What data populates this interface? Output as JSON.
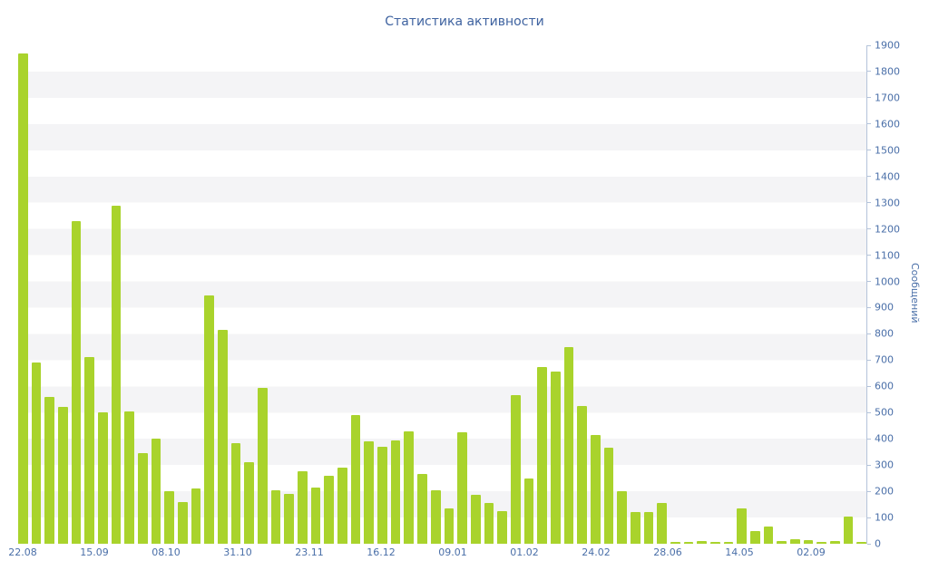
{
  "chart_title": "Статистика активности",
  "colors": {
    "bar": "#a9d32c",
    "title_text": "#3f63a0",
    "tick_text": "#4a6fa8",
    "axis_line": "#b4c3da",
    "stripe": "#f4f4f6",
    "background": "#ffffff"
  },
  "chart_data": {
    "type": "bar",
    "title": "Статистика активности",
    "xlabel": "",
    "ylabel": "Сообщений",
    "ylim": [
      0,
      1900
    ],
    "y_tick_step": 100,
    "grid": "horizontal-stripe-bands-per-100",
    "legend": "none",
    "x_tick_labels": [
      "22.08",
      "15.09",
      "08.10",
      "31.10",
      "23.11",
      "16.12",
      "09.01",
      "01.02",
      "24.02",
      "28.06",
      "14.05",
      "02.09"
    ],
    "x_tick_layout": {
      "first_percent": 0.53,
      "step_percent": 8.45
    },
    "values": [
      1870,
      690,
      560,
      520,
      1230,
      710,
      500,
      1290,
      505,
      345,
      400,
      200,
      160,
      210,
      945,
      815,
      385,
      310,
      595,
      205,
      190,
      275,
      215,
      260,
      290,
      490,
      390,
      370,
      395,
      430,
      265,
      205,
      135,
      425,
      185,
      155,
      125,
      565,
      250,
      675,
      655,
      750,
      525,
      415,
      365,
      200,
      120,
      120,
      155,
      8,
      8,
      10,
      8,
      8,
      135,
      50,
      65,
      12,
      18,
      15,
      8,
      10,
      105,
      8
    ]
  }
}
